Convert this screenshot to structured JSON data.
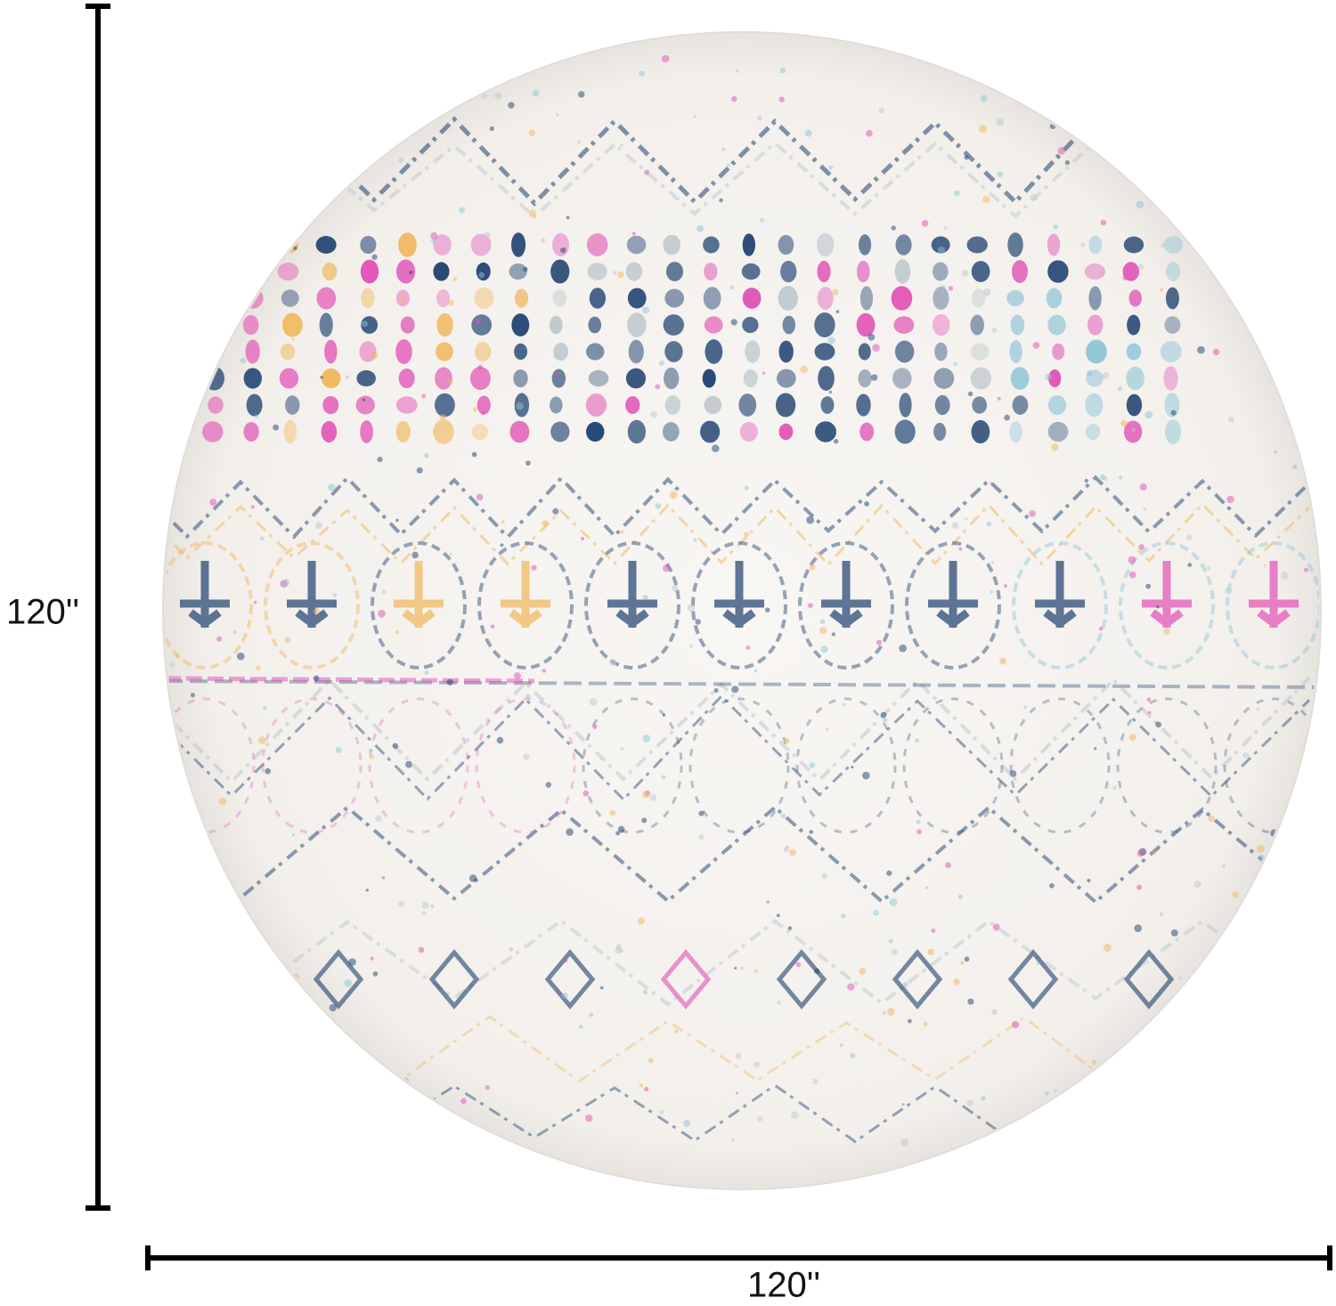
{
  "dimensions": {
    "height_label": "120''",
    "width_label": "120''"
  }
}
